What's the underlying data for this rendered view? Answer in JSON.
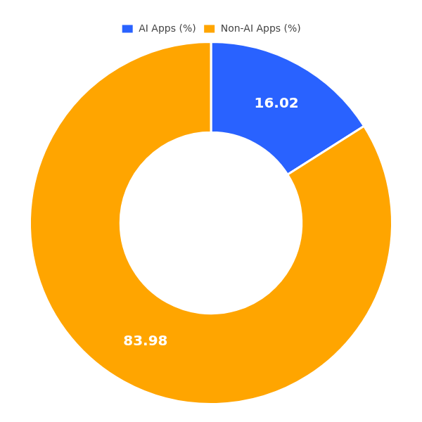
{
  "chart_data": {
    "type": "donut",
    "categories": [
      "AI Apps (%)",
      "Non-AI Apps (%)"
    ],
    "values": [
      16.02,
      83.98
    ],
    "colors": [
      "#2962FF",
      "#FFA500"
    ],
    "data_labels": true,
    "legend": "top"
  }
}
